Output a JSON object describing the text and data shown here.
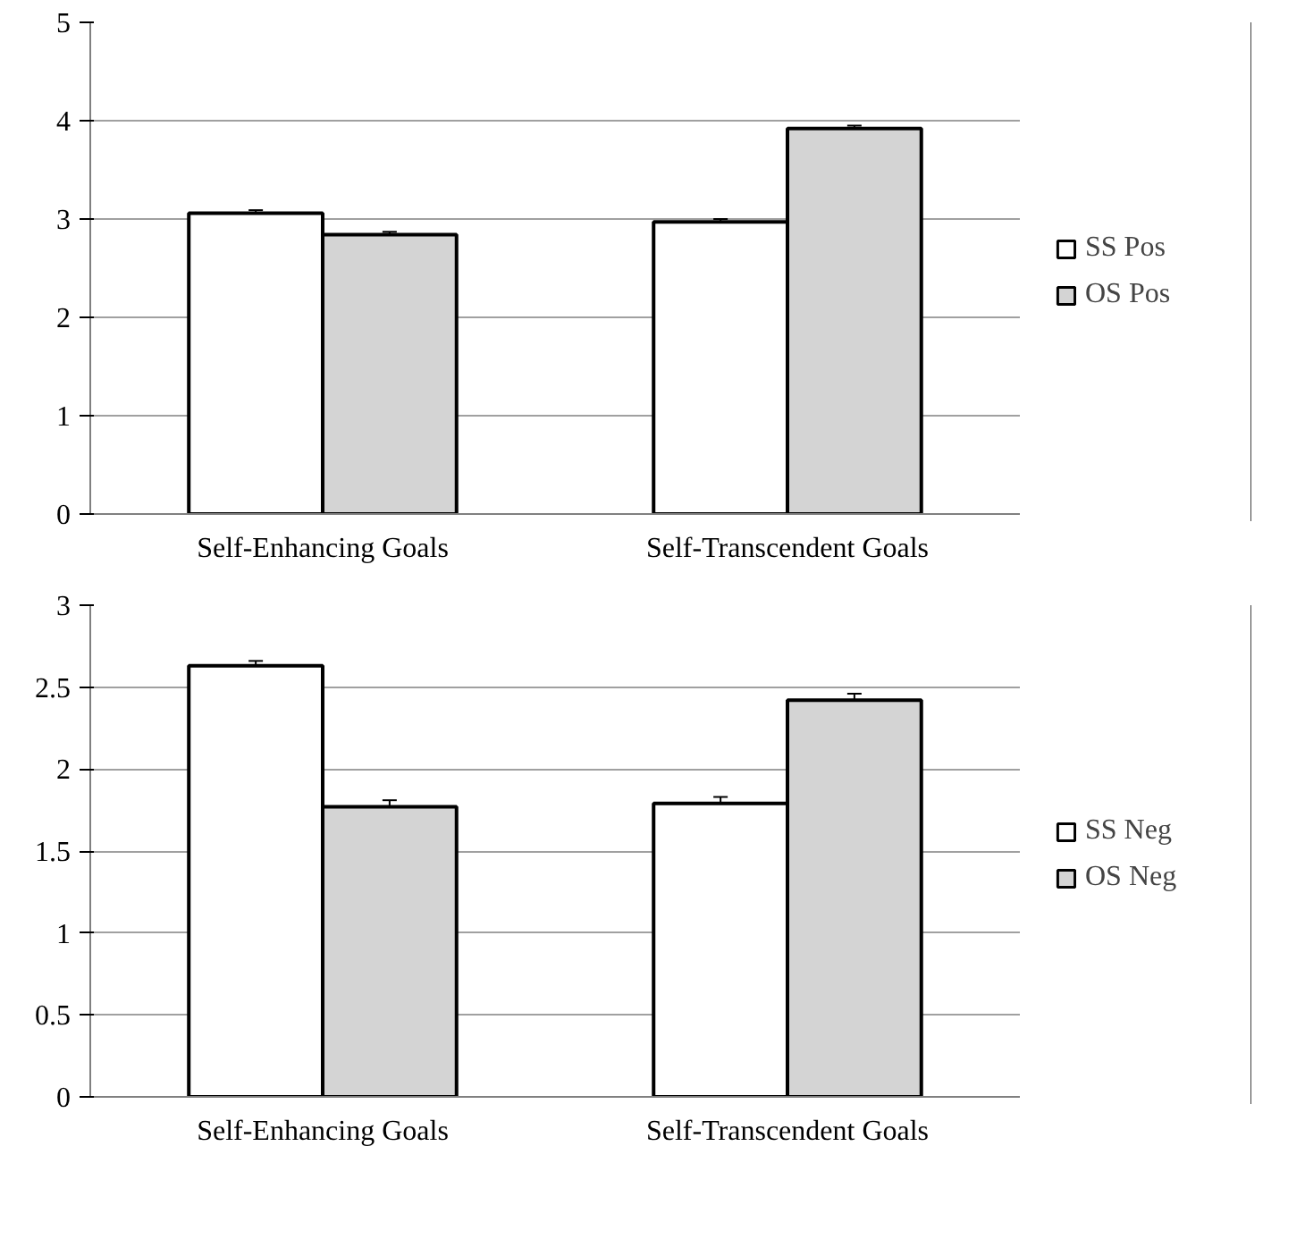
{
  "chart_data": [
    {
      "type": "bar",
      "categories": [
        "Self-Enhancing Goals",
        "Self-Transcendent Goals"
      ],
      "ylim": [
        0,
        5
      ],
      "yticks": [
        0,
        1,
        2,
        3,
        4,
        5
      ],
      "grid": "y",
      "legend": "right",
      "series": [
        {
          "name": "SS Pos",
          "color": "#ffffff",
          "values": [
            3.06,
            2.97
          ],
          "errors": [
            0.03,
            0.03
          ]
        },
        {
          "name": "OS Pos",
          "color": "#d4d4d4",
          "values": [
            2.84,
            3.92
          ],
          "errors": [
            0.03,
            0.03
          ]
        }
      ]
    },
    {
      "type": "bar",
      "categories": [
        "Self-Enhancing Goals",
        "Self-Transcendent Goals"
      ],
      "ylim": [
        0,
        3
      ],
      "yticks": [
        0,
        {
          "value": 0.5,
          "label": "0.5"
        },
        1,
        {
          "value": 1.5,
          "label": "1.5"
        },
        2,
        {
          "value": 2.5,
          "label": "2.5"
        },
        3
      ],
      "grid": "y",
      "legend": "right",
      "series": [
        {
          "name": "SS Neg",
          "color": "#ffffff",
          "values": [
            2.63,
            1.79
          ],
          "errors": [
            0.03,
            0.04
          ]
        },
        {
          "name": "OS Neg",
          "color": "#d4d4d4",
          "values": [
            1.77,
            2.42
          ],
          "errors": [
            0.04,
            0.04
          ]
        }
      ]
    }
  ]
}
